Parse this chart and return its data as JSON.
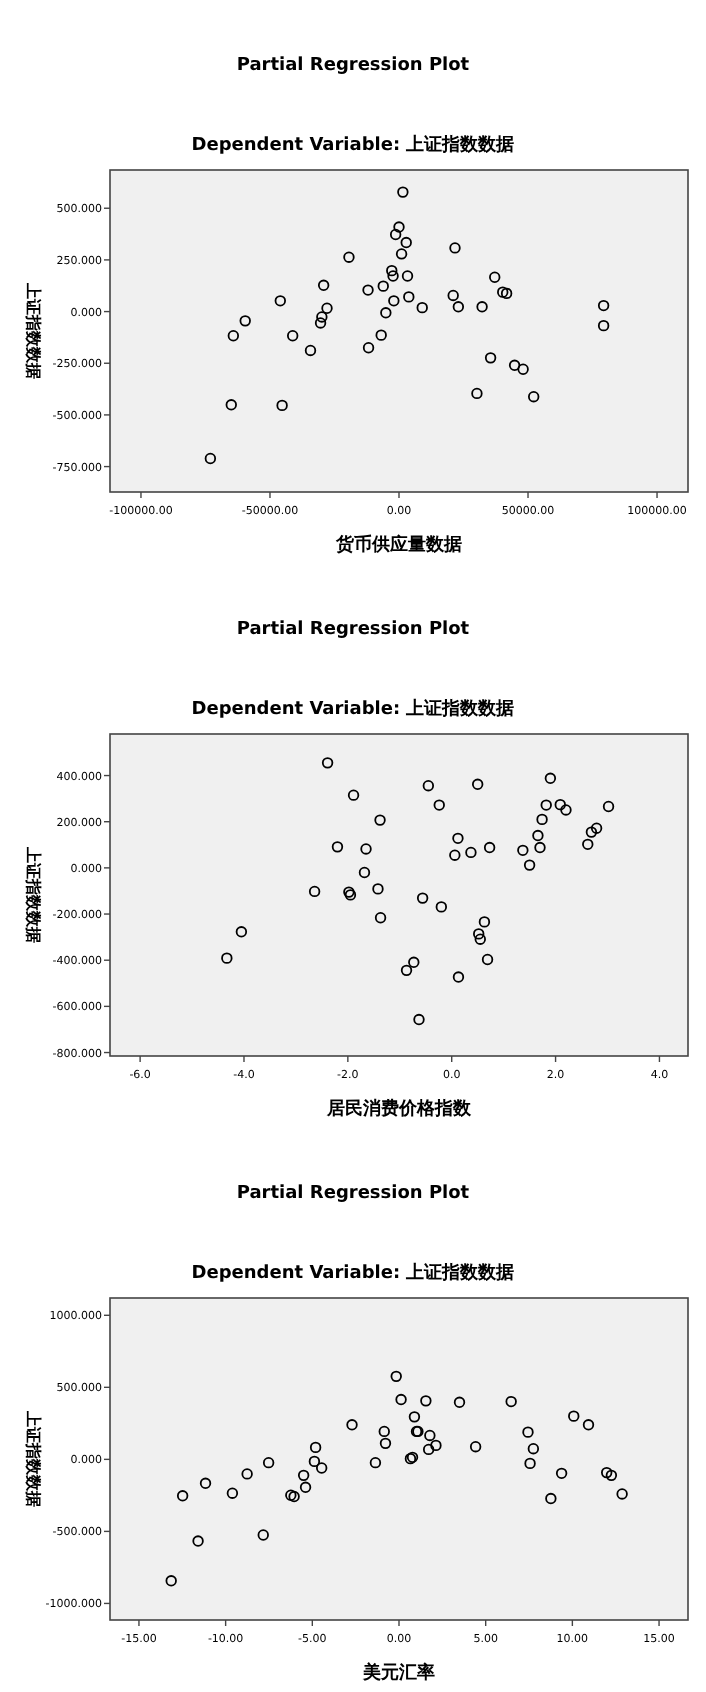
{
  "chart_data": [
    {
      "type": "scatter",
      "title": "Partial Regression Plot",
      "subtitle": "Dependent Variable: 上证指数数据",
      "xlabel": "货币供应量数据",
      "ylabel": "上证指数数据",
      "marker": "circle",
      "grid": false,
      "color": "#000000",
      "x": [
        1500,
        0,
        -1300,
        2800,
        1000,
        -2800,
        -2300,
        3300,
        21700,
        -19400,
        -29200,
        -6100,
        -12000,
        37100,
        40200,
        41700,
        -46000,
        -2000,
        3800,
        21000,
        9000,
        23000,
        32200,
        -27900,
        -5100,
        -29900,
        -30400,
        -59600,
        -64200,
        -41200,
        -6900,
        -11800,
        -34300,
        35500,
        44800,
        48100,
        30200,
        52200,
        79300,
        79300,
        -65000,
        -45300,
        -73100
      ],
      "values": [
        578,
        409,
        373,
        334,
        279,
        198,
        172,
        172,
        308,
        263,
        127,
        123,
        104,
        166,
        94,
        88,
        52,
        52,
        71,
        78,
        19,
        23,
        23,
        16,
        -6,
        -26,
        -55,
        -45,
        -117,
        -117,
        -114,
        -175,
        -188,
        -224,
        -260,
        -279,
        -396,
        -412,
        29,
        -68,
        -451,
        -454,
        -711
      ],
      "xlim": [
        -112000,
        112000
      ],
      "ylim": [
        -873,
        685
      ],
      "xticks": [
        {
          "value": -100000,
          "label": "-100000.00"
        },
        {
          "value": -50000,
          "label": "-50000.00"
        },
        {
          "value": 0,
          "label": "0.00"
        },
        {
          "value": 50000,
          "label": "50000.00"
        },
        {
          "value": 100000,
          "label": "100000.00"
        }
      ],
      "yticks": [
        {
          "value": -750,
          "label": "-750.000"
        },
        {
          "value": -500,
          "label": "-500.000"
        },
        {
          "value": -250,
          "label": "-250.000"
        },
        {
          "value": 0,
          "label": "0.000"
        },
        {
          "value": 250,
          "label": "250.000"
        },
        {
          "value": 500,
          "label": "500.000"
        }
      ]
    },
    {
      "type": "scatter",
      "title": "Partial Regression Plot",
      "subtitle": "Dependent Variable: 上证指数数据",
      "xlabel": "居民消费价格指数",
      "ylabel": "上证指数数据",
      "marker": "circle",
      "grid": false,
      "color": "#000000",
      "x": [
        -2.39,
        -1.89,
        -0.45,
        0.5,
        1.9,
        -0.24,
        -1.38,
        1.82,
        2.09,
        2.2,
        3.02,
        1.74,
        2.79,
        2.69,
        0.12,
        1.66,
        -2.2,
        -1.65,
        0.73,
        0.37,
        0.06,
        1.37,
        1.7,
        2.62,
        1.5,
        -1.68,
        -2.64,
        -1.98,
        -1.95,
        -1.42,
        -0.56,
        -0.2,
        -1.37,
        0.63,
        0.52,
        0.55,
        0.69,
        -4.05,
        -4.33,
        -0.73,
        -0.87,
        0.13,
        -0.63
      ],
      "values": [
        455,
        315,
        356,
        362,
        388,
        272,
        207,
        272,
        274,
        251,
        266,
        210,
        172,
        155,
        128,
        140,
        91,
        82,
        88,
        67,
        55,
        76,
        88,
        102,
        12,
        -20,
        -102,
        -105,
        -117,
        -91,
        -131,
        -169,
        -216,
        -234,
        -286,
        -309,
        -397,
        -277,
        -391,
        -409,
        -444,
        -473,
        -657
      ],
      "xlim": [
        -6.58,
        4.55
      ],
      "ylim": [
        -815,
        580
      ],
      "xticks": [
        {
          "value": -6,
          "label": "-6.0"
        },
        {
          "value": -4,
          "label": "-4.0"
        },
        {
          "value": -2,
          "label": "-2.0"
        },
        {
          "value": 0,
          "label": "0.0"
        },
        {
          "value": 2,
          "label": "2.0"
        },
        {
          "value": 4,
          "label": "4.0"
        }
      ],
      "yticks": [
        {
          "value": -800,
          "label": "-800.000"
        },
        {
          "value": -600,
          "label": "-600.000"
        },
        {
          "value": -400,
          "label": "-400.000"
        },
        {
          "value": -200,
          "label": "-200.000"
        },
        {
          "value": 0,
          "label": "0.000"
        },
        {
          "value": 200,
          "label": "200.000"
        },
        {
          "value": 400,
          "label": "400.000"
        }
      ]
    },
    {
      "type": "scatter",
      "title": "Partial Regression Plot",
      "subtitle": "Dependent Variable: 上证指数数据",
      "xlabel": "美元汇率",
      "ylabel": "上证指数数据",
      "marker": "circle",
      "grid": false,
      "color": "#000000",
      "x": [
        -0.16,
        0.12,
        1.55,
        3.49,
        6.47,
        0.89,
        10.08,
        10.93,
        -2.71,
        7.44,
        -0.85,
        1.01,
        1.09,
        1.78,
        -0.78,
        -4.81,
        2.13,
        4.42,
        1.71,
        7.75,
        0.78,
        0.66,
        -1.36,
        -4.88,
        7.56,
        -7.52,
        -4.46,
        -8.76,
        -5.5,
        9.38,
        11.98,
        12.25,
        -11.16,
        -9.61,
        -5.39,
        -6.24,
        -6.05,
        -12.48,
        12.87,
        8.76,
        -7.83,
        -11.59,
        -13.14
      ],
      "values": [
        576,
        415,
        406,
        396,
        401,
        295,
        300,
        240,
        240,
        189,
        194,
        194,
        194,
        166,
        111,
        83,
        97,
        88,
        69,
        74,
        14,
        5,
        -23,
        -14,
        -28,
        -23,
        -60,
        -101,
        -111,
        -97,
        -92,
        -111,
        -166,
        -235,
        -194,
        -249,
        -258,
        -253,
        -240,
        -272,
        -525,
        -567,
        -843
      ],
      "xlim": [
        -16.67,
        16.67
      ],
      "ylim": [
        -1115,
        1120
      ],
      "xticks": [
        {
          "value": -15,
          "label": "-15.00"
        },
        {
          "value": -10,
          "label": "-10.00"
        },
        {
          "value": -5,
          "label": "-5.00"
        },
        {
          "value": 0,
          "label": "0.00"
        },
        {
          "value": 5,
          "label": "5.00"
        },
        {
          "value": 10,
          "label": "10.00"
        },
        {
          "value": 15,
          "label": "15.00"
        }
      ],
      "yticks": [
        {
          "value": -1000,
          "label": "-1000.000"
        },
        {
          "value": -500,
          "label": "-500.000"
        },
        {
          "value": 0,
          "label": "0.000"
        },
        {
          "value": 500,
          "label": "500.000"
        },
        {
          "value": 1000,
          "label": "1000.000"
        }
      ]
    }
  ]
}
